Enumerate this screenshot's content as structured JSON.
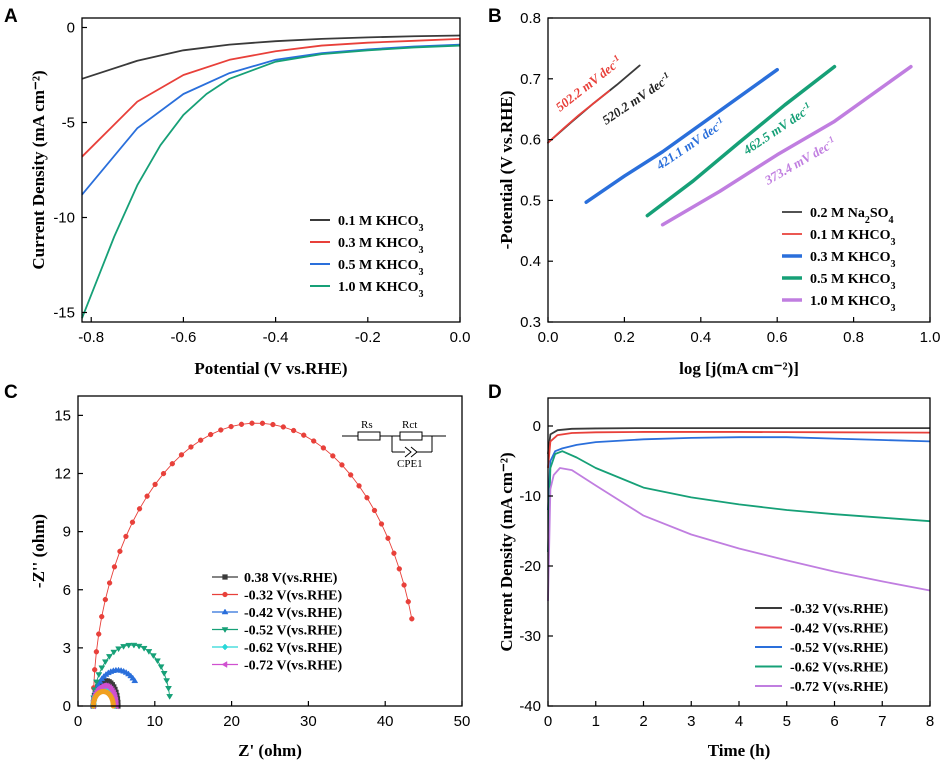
{
  "chart_data": [
    {
      "panel": "A",
      "type": "line",
      "xlabel": "Potential (V vs.RHE)",
      "ylabel": "Current Density (mA cm⁻²)",
      "xlim": [
        -0.82,
        0.0
      ],
      "ylim": [
        -15.5,
        0.5
      ],
      "xticks": [
        -0.8,
        -0.6,
        -0.4,
        -0.2,
        0.0
      ],
      "xtick_labels": [
        "-0.8",
        "-0.6",
        "-0.4",
        "-0.2",
        "0.0"
      ],
      "yticks": [
        0,
        -5,
        -10,
        -15
      ],
      "ytick_labels": [
        "0",
        "-5",
        "-10",
        "-15"
      ],
      "legend_position": "bottom-right",
      "series": [
        {
          "name": "0.1 M KHCO₃",
          "color": "#3a3a3a",
          "x": [
            -0.82,
            -0.7,
            -0.6,
            -0.5,
            -0.4,
            -0.3,
            -0.2,
            -0.1,
            0.0
          ],
          "y": [
            -2.7,
            -1.75,
            -1.2,
            -0.9,
            -0.72,
            -0.6,
            -0.52,
            -0.46,
            -0.42
          ]
        },
        {
          "name": "0.3 M KHCO₃",
          "color": "#e8403a",
          "x": [
            -0.82,
            -0.7,
            -0.6,
            -0.5,
            -0.4,
            -0.3,
            -0.2,
            -0.1,
            0.0
          ],
          "y": [
            -6.8,
            -3.9,
            -2.5,
            -1.7,
            -1.25,
            -0.95,
            -0.8,
            -0.7,
            -0.6
          ]
        },
        {
          "name": "0.5 M KHCO₃",
          "color": "#2a6fdb",
          "x": [
            -0.82,
            -0.7,
            -0.6,
            -0.5,
            -0.4,
            -0.3,
            -0.2,
            -0.1,
            0.0
          ],
          "y": [
            -8.8,
            -5.3,
            -3.5,
            -2.4,
            -1.7,
            -1.35,
            -1.15,
            -1.0,
            -0.9
          ]
        },
        {
          "name": "1.0 M KHCO₃",
          "color": "#16a077",
          "x": [
            -0.82,
            -0.75,
            -0.7,
            -0.65,
            -0.6,
            -0.55,
            -0.5,
            -0.4,
            -0.3,
            -0.2,
            -0.1,
            0.0
          ],
          "y": [
            -15.3,
            -11.0,
            -8.3,
            -6.2,
            -4.6,
            -3.5,
            -2.7,
            -1.8,
            -1.4,
            -1.2,
            -1.05,
            -0.95
          ]
        }
      ]
    },
    {
      "panel": "B",
      "type": "line",
      "xlabel": "log [j(mA cm⁻²)]",
      "ylabel": "-Potential (V vs.RHE)",
      "xlim": [
        0.0,
        1.0
      ],
      "ylim": [
        0.3,
        0.8
      ],
      "xticks": [
        0.0,
        0.2,
        0.4,
        0.6,
        0.8,
        1.0
      ],
      "xtick_labels": [
        "0.0",
        "0.2",
        "0.4",
        "0.6",
        "0.8",
        "1.0"
      ],
      "yticks": [
        0.3,
        0.4,
        0.5,
        0.6,
        0.7,
        0.8
      ],
      "ytick_labels": [
        "0.3",
        "0.4",
        "0.5",
        "0.6",
        "0.7",
        "0.8"
      ],
      "legend_position": "bottom-right",
      "series": [
        {
          "name": "0.2 M Na₂SO₄",
          "color": "#3a3a3a",
          "width": 1.8,
          "x": [
            0.0,
            0.06,
            0.12,
            0.18,
            0.24
          ],
          "y": [
            0.595,
            0.628,
            0.66,
            0.69,
            0.722
          ]
        },
        {
          "name": "0.1 M KHCO₃",
          "color": "#e8403a",
          "width": 1.8,
          "x": [
            0.0,
            0.04,
            0.08,
            0.12,
            0.16
          ],
          "y": [
            0.595,
            0.618,
            0.64,
            0.66,
            0.68
          ]
        },
        {
          "name": "0.3 M KHCO₃",
          "color": "#2a6fdb",
          "width": 3.5,
          "x": [
            0.1,
            0.2,
            0.3,
            0.4,
            0.5,
            0.6
          ],
          "y": [
            0.497,
            0.54,
            0.58,
            0.625,
            0.67,
            0.715
          ]
        },
        {
          "name": "0.5 M KHCO₃",
          "color": "#16a077",
          "width": 3.5,
          "x": [
            0.26,
            0.38,
            0.5,
            0.62,
            0.75
          ],
          "y": [
            0.475,
            0.532,
            0.595,
            0.657,
            0.72
          ]
        },
        {
          "name": "1.0 M KHCO₃",
          "color": "#c07ee0",
          "width": 3.5,
          "x": [
            0.3,
            0.45,
            0.6,
            0.75,
            0.95
          ],
          "y": [
            0.46,
            0.515,
            0.575,
            0.63,
            0.72
          ]
        }
      ],
      "annotations": [
        {
          "text": "502.2 mV dec⁻¹",
          "color": "#e8403a"
        },
        {
          "text": "520.2 mV dec⁻¹",
          "color": "#222222"
        },
        {
          "text": "421.1 mV dec⁻¹",
          "color": "#2a6fdb"
        },
        {
          "text": "462.5 mV dec⁻¹",
          "color": "#16a077"
        },
        {
          "text": "373.4 mV dec⁻¹",
          "color": "#c07ee0"
        }
      ]
    },
    {
      "panel": "C",
      "type": "scatter",
      "xlabel": "Z' (ohm)",
      "ylabel": "-Z'' (ohm)",
      "xlim": [
        0,
        50
      ],
      "ylim": [
        0,
        16
      ],
      "xticks": [
        0,
        10,
        20,
        30,
        40,
        50
      ],
      "xtick_labels": [
        "0",
        "10",
        "20",
        "30",
        "40",
        "50"
      ],
      "yticks": [
        0,
        3,
        6,
        9,
        12,
        15
      ],
      "ytick_labels": [
        "0",
        "3",
        "6",
        "9",
        "12",
        "15"
      ],
      "legend_position": "bottom-center",
      "circuit_labels": [
        "Rs",
        "Rct",
        "CPE1"
      ],
      "series": [
        {
          "name": "0.38 V(vs.RHE)",
          "color": "#3a3a3a",
          "marker": "square",
          "x0": 2.0,
          "x1": 5.2,
          "ymax": 1.3
        },
        {
          "name": "-0.32 V(vs.RHE)",
          "color": "#e8403a",
          "marker": "circle",
          "x0": 2.0,
          "x1": 44.5,
          "ymax": 14.6,
          "open_end_y": 4.5
        },
        {
          "name": "-0.42 V(vs.RHE)",
          "color": "#2a6fdb",
          "marker": "triangle-up",
          "x0": 2.0,
          "x1": 8.3,
          "ymax": 1.85,
          "open_end_y": 1.3
        },
        {
          "name": "-0.52 V(vs.RHE)",
          "color": "#16a077",
          "marker": "triangle-down",
          "x0": 2.0,
          "x1": 12.0,
          "ymax": 3.15,
          "open_end_y": 0.5
        },
        {
          "name": "-0.62 V(vs.RHE)",
          "color": "#2ad8d8",
          "marker": "diamond",
          "x0": 2.0,
          "x1": 4.8,
          "ymax": 0.9
        },
        {
          "name": "-0.72 V(vs.RHE)",
          "color": "#d050d0",
          "marker": "triangle-left",
          "x0": 2.0,
          "x1": 5.0,
          "ymax": 1.05
        },
        {
          "name": "",
          "color": "#f0a020",
          "marker": "circle",
          "x0": 2.0,
          "x1": 4.6,
          "ymax": 0.75,
          "legend": false
        }
      ]
    },
    {
      "panel": "D",
      "type": "line",
      "xlabel": "Time (h)",
      "ylabel": "Current Density (mA cm⁻²)",
      "xlim": [
        0,
        8
      ],
      "ylim": [
        -40,
        4
      ],
      "xticks": [
        0,
        1,
        2,
        3,
        4,
        5,
        6,
        7,
        8
      ],
      "xtick_labels": [
        "0",
        "1",
        "2",
        "3",
        "4",
        "5",
        "6",
        "7",
        "8"
      ],
      "yticks": [
        0,
        -10,
        -20,
        -30,
        -40
      ],
      "ytick_labels": [
        "0",
        "-10",
        "-20",
        "-30",
        "-40"
      ],
      "legend_position": "bottom-right",
      "series": [
        {
          "name": "-0.32 V(vs.RHE)",
          "color": "#3a3a3a",
          "x": [
            0,
            0.05,
            0.2,
            0.5,
            1,
            2,
            4,
            6,
            8
          ],
          "y": [
            -4,
            -1.2,
            -0.6,
            -0.4,
            -0.35,
            -0.3,
            -0.3,
            -0.3,
            -0.3
          ]
        },
        {
          "name": "-0.42 V(vs.RHE)",
          "color": "#e8403a",
          "x": [
            0,
            0.05,
            0.2,
            0.5,
            1,
            2,
            4,
            6,
            8
          ],
          "y": [
            -6,
            -2.2,
            -1.3,
            -1.0,
            -0.9,
            -0.85,
            -0.85,
            -0.9,
            -0.95
          ]
        },
        {
          "name": "-0.52 V(vs.RHE)",
          "color": "#2a6fdb",
          "x": [
            0,
            0.05,
            0.15,
            0.3,
            0.6,
            1,
            2,
            3,
            4,
            5,
            6,
            7,
            8
          ],
          "y": [
            -12,
            -5,
            -3.6,
            -3.2,
            -2.7,
            -2.3,
            -1.9,
            -1.7,
            -1.6,
            -1.6,
            -1.8,
            -2.0,
            -2.2
          ]
        },
        {
          "name": "-0.62 V(vs.RHE)",
          "color": "#16a077",
          "x": [
            0,
            0.05,
            0.15,
            0.3,
            0.6,
            1,
            2,
            3,
            4,
            5,
            6,
            7,
            8
          ],
          "y": [
            -18,
            -6,
            -4,
            -3.6,
            -4.5,
            -6.0,
            -8.8,
            -10.2,
            -11.2,
            -12.0,
            -12.6,
            -13.1,
            -13.6
          ]
        },
        {
          "name": "-0.72 V(vs.RHE)",
          "color": "#c07ee0",
          "x": [
            0,
            0.05,
            0.12,
            0.25,
            0.5,
            1,
            2,
            3,
            4,
            5,
            6,
            7,
            8
          ],
          "y": [
            -25,
            -9,
            -7,
            -6,
            -6.3,
            -8.5,
            -12.8,
            -15.5,
            -17.5,
            -19.2,
            -20.8,
            -22.2,
            -23.5
          ]
        }
      ]
    }
  ]
}
